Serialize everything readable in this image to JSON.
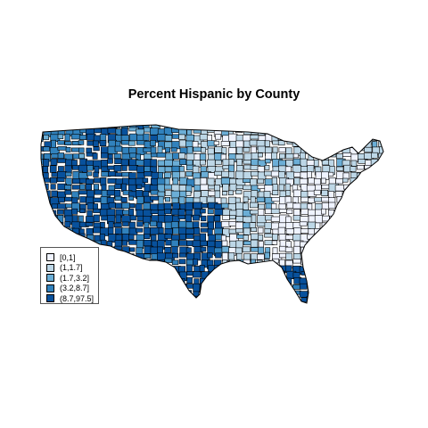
{
  "title": "Percent Hispanic by County",
  "legend": {
    "items": [
      {
        "label": "[0,1]",
        "color": "#eff3ff"
      },
      {
        "label": "(1,1.7]",
        "color": "#bdd7e7"
      },
      {
        "label": "(1.7,3.2]",
        "color": "#6baed6"
      },
      {
        "label": "(3.2,8.7]",
        "color": "#3182bd"
      },
      {
        "label": "(8.7,97.5]",
        "color": "#08519c"
      }
    ]
  },
  "map": {
    "region": "contiguous-united-states",
    "border_color": "#000000",
    "regional_classes": {
      "southwest": 4,
      "texas": 4,
      "florida-south": 4,
      "pacific-northwest": 3,
      "great-plains": 2,
      "midwest": 1,
      "southeast": 0,
      "appalachia": 0,
      "northeast": 1
    }
  }
}
